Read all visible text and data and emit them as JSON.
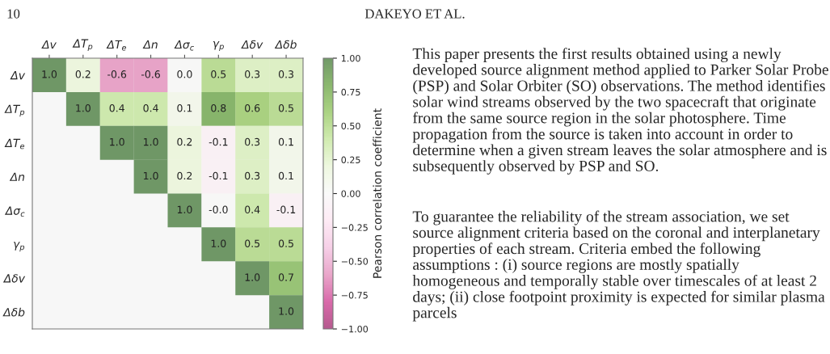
{
  "chart_data": {
    "type": "heatmap",
    "categories": [
      "Δv",
      "ΔT$_{p}$",
      "ΔT$_{e}$",
      "Δn",
      "Δσ$_{c}$",
      "γ$_{p}$",
      "Δδv",
      "Δδb"
    ],
    "y_categories": [
      "Δv",
      "ΔT$_{p}$",
      "ΔT$_{e}$",
      "Δn",
      "Δσ$_{c}$",
      "γ$_{p}$",
      "Δδv",
      "Δδb"
    ],
    "cells": [
      [
        1.0,
        0.2,
        -0.6,
        -0.6,
        0.0,
        0.5,
        0.3,
        0.3
      ],
      [
        null,
        1.0,
        0.4,
        0.4,
        0.1,
        0.8,
        0.6,
        0.5
      ],
      [
        null,
        null,
        1.0,
        1.0,
        0.2,
        -0.1,
        0.3,
        0.1
      ],
      [
        null,
        null,
        null,
        1.0,
        0.2,
        -0.1,
        0.3,
        0.1
      ],
      [
        null,
        null,
        null,
        null,
        1.0,
        -0.0,
        0.4,
        -0.1
      ],
      [
        null,
        null,
        null,
        null,
        null,
        1.0,
        0.5,
        0.5
      ],
      [
        null,
        null,
        null,
        null,
        null,
        null,
        1.0,
        0.7
      ],
      [
        null,
        null,
        null,
        null,
        null,
        null,
        null,
        1.0
      ]
    ],
    "cell_labels": [
      [
        "1.0",
        "0.2",
        "-0.6",
        "-0.6",
        "0.0",
        "0.5",
        "0.3",
        "0.3"
      ],
      [
        null,
        "1.0",
        "0.4",
        "0.4",
        "0.1",
        "0.8",
        "0.6",
        "0.5"
      ],
      [
        null,
        null,
        "1.0",
        "1.0",
        "0.2",
        "-0.1",
        "0.3",
        "0.1"
      ],
      [
        null,
        null,
        null,
        "1.0",
        "0.2",
        "-0.1",
        "0.3",
        "0.1"
      ],
      [
        null,
        null,
        null,
        null,
        "1.0",
        "-0.0",
        "0.4",
        "-0.1"
      ],
      [
        null,
        null,
        null,
        null,
        null,
        "1.0",
        "0.5",
        "0.5"
      ],
      [
        null,
        null,
        null,
        null,
        null,
        null,
        "1.0",
        "0.7"
      ],
      [
        null,
        null,
        null,
        null,
        null,
        null,
        null,
        "1.0"
      ]
    ],
    "clabel": "Pearson correlation coefficient",
    "clim": [
      -1,
      1
    ],
    "cticks": [
      {
        "value": -1,
        "label": "−1.00"
      },
      {
        "value": -0.75,
        "label": "−0.75"
      },
      {
        "value": -0.5,
        "label": "−0.50"
      },
      {
        "value": -0.25,
        "label": "−0.25"
      },
      {
        "value": 0,
        "label": "0.00"
      },
      {
        "value": 0.25,
        "label": "0.25"
      },
      {
        "value": 0.5,
        "label": "0.50"
      },
      {
        "value": 0.75,
        "label": "0.75"
      },
      {
        "value": 1,
        "label": "1.00"
      }
    ],
    "annotations": [
      "10",
      "DAKEYO ET AL.",
      "This paper presents the first results obtained using a newly developed source alignment method applied to Parker Solar Probe (PSP) and Solar Orbiter (SO) observations. The method identifies solar wind streams observed by the two spacecraft that originate from the same source region in the solar photosphere. Time propagation from the source is taken into account in order to determine when a given stream leaves the solar atmosphere and is subsequently observed by PSP and SO.",
      "To guarantee the reliability of the stream association, we set source alignment criteria based on the coronal and interplanetary properties of each stream. Criteria embed the following assumptions : (i) source regions are mostly spatially homogeneous and temporally stable over timescales of at least 2 days; (ii) close footpoint proximity is expected for similar plasma parcels"
    ]
  }
}
